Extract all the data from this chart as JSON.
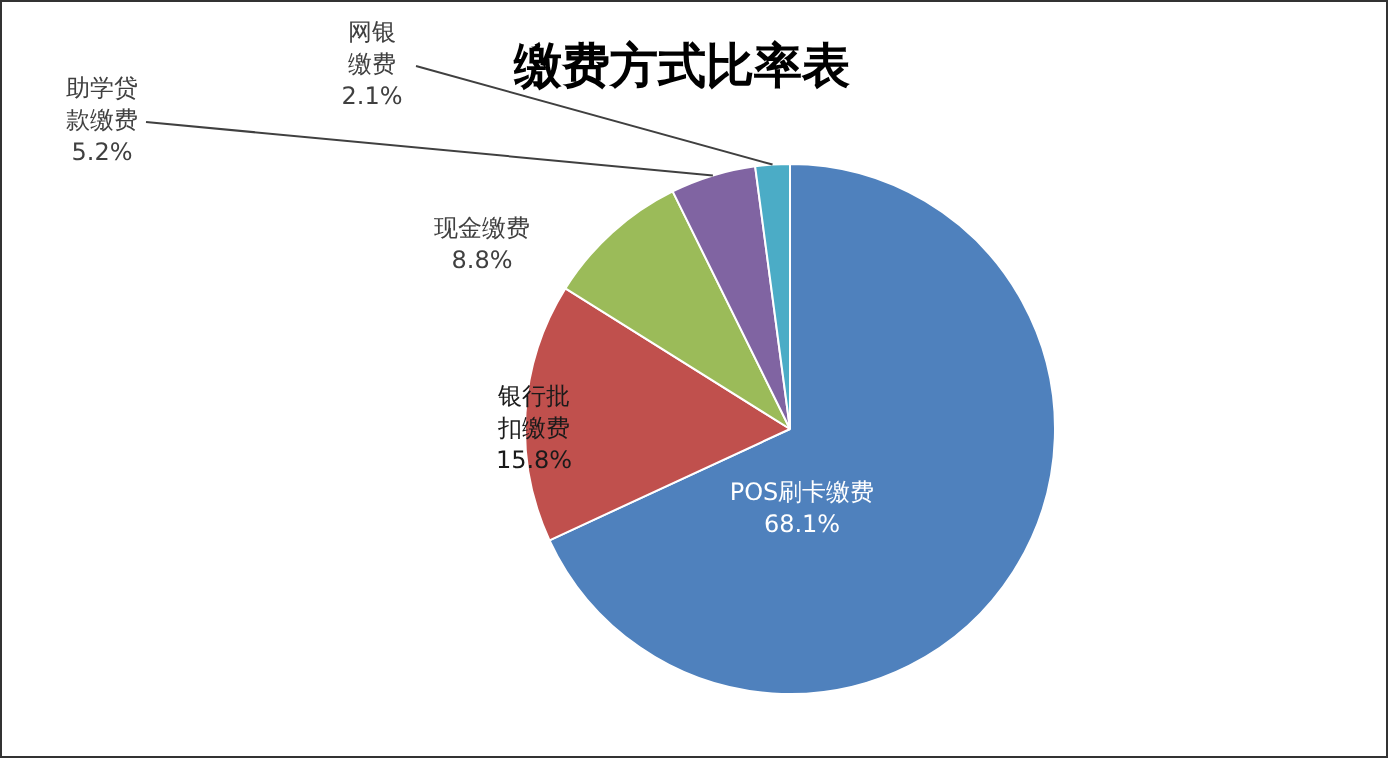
{
  "chart_data": {
    "type": "pie",
    "title": "缴费方式比率表",
    "categories": [
      "POS刷卡缴费",
      "银行批扣缴费",
      "现金缴费",
      "助学贷款缴费",
      "网银缴费"
    ],
    "values": [
      68.1,
      15.8,
      8.8,
      5.2,
      2.1
    ],
    "colors": [
      "#4f81bd",
      "#c0504d",
      "#9bbb59",
      "#8064a2",
      "#4bacc6"
    ],
    "value_labels": [
      "68.1%",
      "15.8%",
      "8.8%",
      "5.2%",
      "2.1%"
    ],
    "legend": false
  }
}
